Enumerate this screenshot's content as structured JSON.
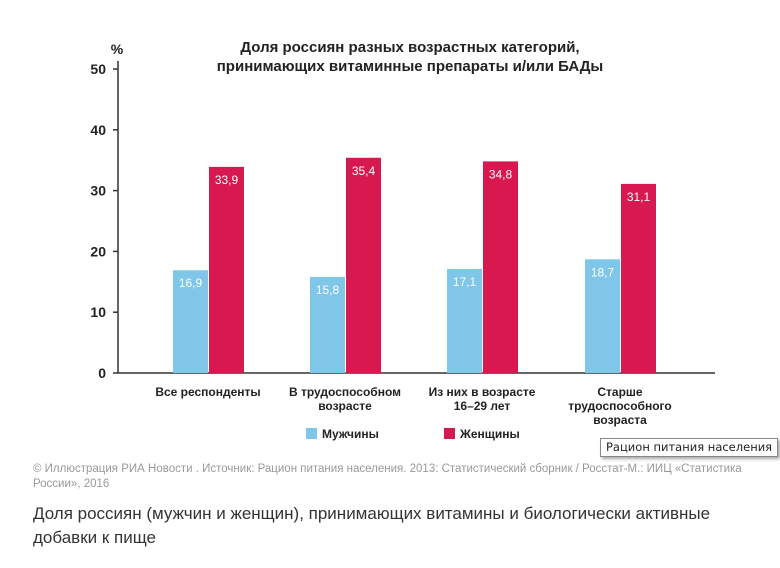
{
  "chart_data": {
    "type": "bar",
    "title": [
      "Доля россиян разных возрастных категорий,",
      "принимающих витаминные препараты и/или БАДы"
    ],
    "ylabel": "%",
    "ylim": [
      0,
      50
    ],
    "yticks": [
      "0",
      "10",
      "20",
      "30",
      "40",
      "50"
    ],
    "categories": [
      [
        "Все респонденты"
      ],
      [
        "В трудоспособном",
        "возрасте"
      ],
      [
        "Из них в возрасте",
        "16–29 лет"
      ],
      [
        "Старше",
        "трудоспособного",
        "возраста"
      ]
    ],
    "series": [
      {
        "name": "Мужчины",
        "color": "#7fc6e8",
        "values": [
          16.9,
          15.8,
          17.1,
          18.7
        ],
        "labels": [
          "16,9",
          "15,8",
          "17,1",
          "18,7"
        ]
      },
      {
        "name": "Женщины",
        "color": "#d8194f",
        "values": [
          33.9,
          35.4,
          34.8,
          31.1
        ],
        "labels": [
          "33,9",
          "35,4",
          "34,8",
          "31,1"
        ]
      }
    ],
    "legend": "bottom"
  },
  "tooltip": "Рацион питания населения",
  "credit": "© Иллюстрация РИА Новости . Источник: Рацион питания населения. 2013: Статистический сборник / Росстат-М.: ИИЦ «Статистика России», 2016",
  "caption": "Доля россиян (мужчин и женщин), принимающих витамины и биологически активные добавки к пище"
}
